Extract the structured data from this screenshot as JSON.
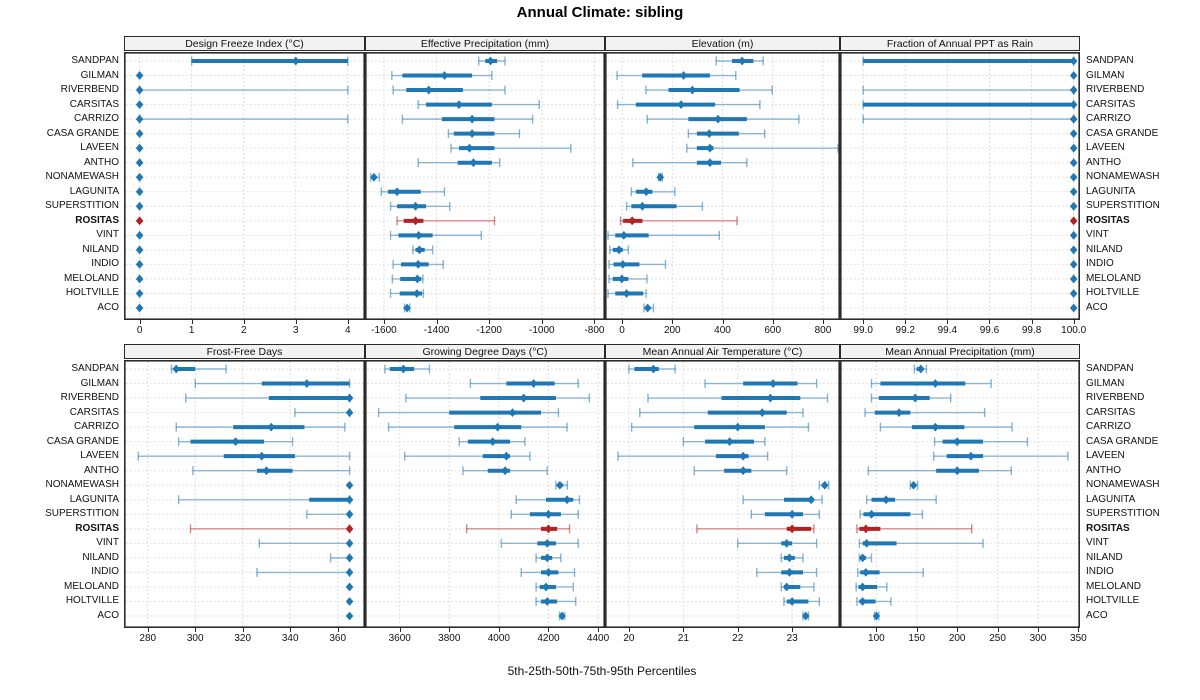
{
  "title": "Annual Climate: sibling",
  "caption": "5th-25th-50th-75th-95th Percentiles",
  "highlight_site": "ROSITAS",
  "colors": {
    "series": "#1f77b4",
    "highlight": "#b22222",
    "grid": "#d2d2d2",
    "panel_border": "#2b2b2b",
    "header_bg": "#f2f2f2",
    "text": "#111111"
  },
  "sites": [
    "SANDPAN",
    "GILMAN",
    "RIVERBEND",
    "CARSITAS",
    "CARRIZO",
    "CASA GRANDE",
    "LAVEEN",
    "ANTHO",
    "NONAMEWASH",
    "LAGUNITA",
    "SUPERSTITION",
    "ROSITAS",
    "VINT",
    "NILAND",
    "INDIO",
    "MELOLAND",
    "HOLTVILLE",
    "ACO"
  ],
  "chart_data": {
    "type": "dot-interval-trellis",
    "percentiles": [
      5,
      25,
      50,
      75,
      95
    ],
    "layout": {
      "rows": 2,
      "cols": 4
    },
    "panels": [
      {
        "title": "Design Freeze Index (°C)",
        "tick_values": [
          0,
          1,
          2,
          3,
          4
        ],
        "tick_labels": [
          "0",
          "1",
          "2",
          "3",
          "4"
        ],
        "domain": [
          -0.3,
          4.33
        ],
        "values": [
          [
            1,
            1,
            3,
            4,
            4
          ],
          [
            0,
            0,
            0,
            0,
            0
          ],
          [
            0,
            0,
            0,
            0,
            4
          ],
          [
            0,
            0,
            0,
            0,
            0
          ],
          [
            0,
            0,
            0,
            0,
            4
          ],
          [
            0,
            0,
            0,
            0,
            0
          ],
          [
            0,
            0,
            0,
            0,
            0
          ],
          [
            0,
            0,
            0,
            0,
            0
          ],
          [
            0,
            0,
            0,
            0,
            0
          ],
          [
            0,
            0,
            0,
            0,
            0
          ],
          [
            0,
            0,
            0,
            0,
            0
          ],
          [
            0,
            0,
            0,
            0,
            0
          ],
          [
            0,
            0,
            0,
            0,
            0
          ],
          [
            0,
            0,
            0,
            0,
            0
          ],
          [
            0,
            0,
            0,
            0,
            0
          ],
          [
            0,
            0,
            0,
            0,
            0
          ],
          [
            0,
            0,
            0,
            0,
            0
          ],
          [
            0,
            0,
            0,
            0,
            0
          ]
        ]
      },
      {
        "title": "Effective Precipitation (mm)",
        "tick_values": [
          -1600,
          -1400,
          -1200,
          -1000,
          -800
        ],
        "tick_labels": [
          "-1600",
          "-1400",
          "-1200",
          "-1000",
          "-800"
        ],
        "domain": [
          -1672,
          -760
        ],
        "values": [
          [
            -1240,
            -1215,
            -1195,
            -1170,
            -1140
          ],
          [
            -1570,
            -1530,
            -1370,
            -1265,
            -1190
          ],
          [
            -1565,
            -1515,
            -1430,
            -1300,
            -1140
          ],
          [
            -1470,
            -1440,
            -1315,
            -1190,
            -1010
          ],
          [
            -1530,
            -1380,
            -1265,
            -1180,
            -1035
          ],
          [
            -1355,
            -1335,
            -1265,
            -1180,
            -1085
          ],
          [
            -1345,
            -1315,
            -1275,
            -1180,
            -890
          ],
          [
            -1470,
            -1320,
            -1260,
            -1190,
            -1160
          ],
          [
            -1650,
            -1645,
            -1638,
            -1630,
            -1618
          ],
          [
            -1610,
            -1585,
            -1550,
            -1460,
            -1370
          ],
          [
            -1575,
            -1550,
            -1480,
            -1440,
            -1350
          ],
          [
            -1550,
            -1525,
            -1480,
            -1450,
            -1180
          ],
          [
            -1575,
            -1545,
            -1468,
            -1415,
            -1230
          ],
          [
            -1490,
            -1480,
            -1465,
            -1445,
            -1415
          ],
          [
            -1565,
            -1535,
            -1470,
            -1430,
            -1375
          ],
          [
            -1568,
            -1538,
            -1473,
            -1458,
            -1452
          ],
          [
            -1575,
            -1540,
            -1475,
            -1455,
            -1450
          ],
          [
            -1522,
            -1518,
            -1512,
            -1508,
            -1502
          ]
        ]
      },
      {
        "title": "Elevation (m)",
        "tick_values": [
          0,
          200,
          400,
          600,
          800
        ],
        "tick_labels": [
          "0",
          "200",
          "400",
          "600",
          "800"
        ],
        "domain": [
          -68,
          868
        ],
        "values": [
          [
            375,
            438,
            478,
            523,
            562
          ],
          [
            -20,
            80,
            245,
            350,
            453
          ],
          [
            95,
            185,
            280,
            468,
            598
          ],
          [
            -18,
            55,
            235,
            370,
            549
          ],
          [
            100,
            264,
            382,
            497,
            704
          ],
          [
            264,
            298,
            347,
            465,
            568
          ],
          [
            258,
            298,
            350,
            364,
            860
          ],
          [
            43,
            298,
            350,
            394,
            497
          ],
          [
            145,
            149,
            152,
            156,
            160
          ],
          [
            37,
            55,
            96,
            121,
            210
          ],
          [
            18,
            37,
            81,
            217,
            320
          ],
          [
            -6,
            4,
            40,
            81,
            458
          ],
          [
            -56,
            -27,
            7,
            106,
            387
          ],
          [
            -49,
            -37,
            -12,
            3,
            25
          ],
          [
            -52,
            -34,
            3,
            69,
            173
          ],
          [
            -52,
            -37,
            -1,
            25,
            99
          ],
          [
            -56,
            -27,
            18,
            84,
            96
          ],
          [
            87,
            94,
            102,
            112,
            125
          ]
        ]
      },
      {
        "title": "Fraction of Annual PPT as Rain",
        "tick_values": [
          99.0,
          99.2,
          99.4,
          99.6,
          99.8,
          100.0
        ],
        "tick_labels": [
          "99.0",
          "99.2",
          "99.4",
          "99.6",
          "99.8",
          "100.0"
        ],
        "domain": [
          98.89,
          100.03
        ],
        "values": [
          [
            99.0,
            99.0,
            100.0,
            100.0,
            100.0
          ],
          [
            100.0,
            100.0,
            100.0,
            100.0,
            100.0
          ],
          [
            99.0,
            100.0,
            100.0,
            100.0,
            100.0
          ],
          [
            99.0,
            99.0,
            100.0,
            100.0,
            100.0
          ],
          [
            99.0,
            100.0,
            100.0,
            100.0,
            100.0
          ],
          [
            100.0,
            100.0,
            100.0,
            100.0,
            100.0
          ],
          [
            100.0,
            100.0,
            100.0,
            100.0,
            100.0
          ],
          [
            100.0,
            100.0,
            100.0,
            100.0,
            100.0
          ],
          [
            100.0,
            100.0,
            100.0,
            100.0,
            100.0
          ],
          [
            100.0,
            100.0,
            100.0,
            100.0,
            100.0
          ],
          [
            100.0,
            100.0,
            100.0,
            100.0,
            100.0
          ],
          [
            100.0,
            100.0,
            100.0,
            100.0,
            100.0
          ],
          [
            100.0,
            100.0,
            100.0,
            100.0,
            100.0
          ],
          [
            100.0,
            100.0,
            100.0,
            100.0,
            100.0
          ],
          [
            100.0,
            100.0,
            100.0,
            100.0,
            100.0
          ],
          [
            100.0,
            100.0,
            100.0,
            100.0,
            100.0
          ],
          [
            100.0,
            100.0,
            100.0,
            100.0,
            100.0
          ],
          [
            100.0,
            100.0,
            100.0,
            100.0,
            100.0
          ]
        ]
      },
      {
        "title": "Frost-Free Days",
        "tick_values": [
          280,
          300,
          320,
          340,
          360
        ],
        "tick_labels": [
          "280",
          "300",
          "320",
          "340",
          "360"
        ],
        "domain": [
          270,
          371.5
        ],
        "values": [
          [
            290,
            291,
            292,
            300,
            313
          ],
          [
            300,
            328,
            347,
            365,
            365
          ],
          [
            296,
            331,
            365,
            365,
            365
          ],
          [
            342,
            365,
            365,
            365,
            365
          ],
          [
            292,
            316,
            332,
            346,
            363
          ],
          [
            293,
            298,
            317,
            329,
            341
          ],
          [
            276,
            312,
            328,
            342,
            365
          ],
          [
            299,
            326,
            330,
            341,
            365
          ],
          [
            365,
            365,
            365,
            365,
            365
          ],
          [
            293,
            348,
            365,
            365,
            365
          ],
          [
            347,
            365,
            365,
            365,
            365
          ],
          [
            298,
            365,
            365,
            365,
            365
          ],
          [
            327,
            365,
            365,
            365,
            365
          ],
          [
            357,
            365,
            365,
            365,
            365
          ],
          [
            326,
            365,
            365,
            365,
            365
          ],
          [
            365,
            365,
            365,
            365,
            365
          ],
          [
            365,
            365,
            365,
            365,
            365
          ],
          [
            365,
            365,
            365,
            365,
            365
          ]
        ]
      },
      {
        "title": "Growing Degree Days (°C)",
        "tick_values": [
          3600,
          3800,
          4000,
          4200,
          4400
        ],
        "tick_labels": [
          "3600",
          "3800",
          "4000",
          "4200",
          "4400"
        ],
        "domain": [
          3460,
          4428
        ],
        "values": [
          [
            3540,
            3560,
            3615,
            3658,
            3720
          ],
          [
            3885,
            4030,
            4140,
            4225,
            4320
          ],
          [
            3625,
            3925,
            4100,
            4230,
            4365
          ],
          [
            3515,
            3800,
            4055,
            4170,
            4240
          ],
          [
            3555,
            3820,
            3995,
            4090,
            4275
          ],
          [
            3840,
            3875,
            3975,
            4045,
            4105
          ],
          [
            3620,
            3935,
            4030,
            4045,
            4125
          ],
          [
            3855,
            3955,
            4025,
            4045,
            4195
          ],
          [
            4230,
            4236,
            4246,
            4258,
            4276
          ],
          [
            4070,
            4190,
            4275,
            4300,
            4325
          ],
          [
            4050,
            4125,
            4200,
            4250,
            4320
          ],
          [
            3870,
            4170,
            4200,
            4235,
            4285
          ],
          [
            4010,
            4155,
            4195,
            4230,
            4320
          ],
          [
            4150,
            4170,
            4195,
            4215,
            4250
          ],
          [
            4090,
            4170,
            4200,
            4240,
            4305
          ],
          [
            4150,
            4165,
            4190,
            4230,
            4300
          ],
          [
            4150,
            4170,
            4195,
            4235,
            4310
          ],
          [
            4245,
            4250,
            4255,
            4260,
            4265
          ]
        ]
      },
      {
        "title": "Mean Annual Air Temperature (°C)",
        "tick_values": [
          20,
          21,
          22,
          23
        ],
        "tick_labels": [
          "20",
          "21",
          "22",
          "23"
        ],
        "domain": [
          19.56,
          23.88
        ],
        "values": [
          [
            20.0,
            20.1,
            20.45,
            20.55,
            20.85
          ],
          [
            21.4,
            22.1,
            22.65,
            23.1,
            23.45
          ],
          [
            20.35,
            21.7,
            22.6,
            23.15,
            23.65
          ],
          [
            20.2,
            21.45,
            22.45,
            22.9,
            23.2
          ],
          [
            20.05,
            21.2,
            22.0,
            22.5,
            23.3
          ],
          [
            21.0,
            21.4,
            21.85,
            22.3,
            22.5
          ],
          [
            19.8,
            21.6,
            22.1,
            22.2,
            22.55
          ],
          [
            21.2,
            21.75,
            22.1,
            22.25,
            22.9
          ],
          [
            23.5,
            23.55,
            23.6,
            23.63,
            23.67
          ],
          [
            22.1,
            22.85,
            23.35,
            23.4,
            23.55
          ],
          [
            22.25,
            22.5,
            23.0,
            23.2,
            23.5
          ],
          [
            21.25,
            22.9,
            23.0,
            23.35,
            23.4
          ],
          [
            22.0,
            22.8,
            22.9,
            23.0,
            23.45
          ],
          [
            22.8,
            22.85,
            22.95,
            23.05,
            23.2
          ],
          [
            22.35,
            22.8,
            22.95,
            23.2,
            23.45
          ],
          [
            22.8,
            22.85,
            22.9,
            23.15,
            23.4
          ],
          [
            22.85,
            22.9,
            23.0,
            23.3,
            23.5
          ],
          [
            23.2,
            23.22,
            23.25,
            23.28,
            23.3
          ]
        ]
      },
      {
        "title": "Mean Annual Precipitation (mm)",
        "tick_values": [
          100,
          150,
          200,
          250,
          300,
          350
        ],
        "tick_labels": [
          "100",
          "150",
          "200",
          "250",
          "300",
          "350"
        ],
        "domain": [
          55,
          352
        ],
        "values": [
          [
            147,
            150,
            155,
            158,
            162
          ],
          [
            94,
            105,
            173,
            210,
            242
          ],
          [
            94,
            103,
            148,
            166,
            192
          ],
          [
            86,
            98,
            128,
            142,
            234
          ],
          [
            105,
            144,
            173,
            209,
            268
          ],
          [
            172,
            182,
            200,
            232,
            287
          ],
          [
            171,
            187,
            217,
            232,
            337
          ],
          [
            90,
            174,
            200,
            227,
            267
          ],
          [
            142,
            144,
            146,
            149,
            151
          ],
          [
            88,
            94,
            112,
            123,
            174
          ],
          [
            80,
            84,
            94,
            142,
            157
          ],
          [
            76,
            79,
            87,
            105,
            218
          ],
          [
            79,
            83,
            88,
            125,
            232
          ],
          [
            79,
            80,
            83,
            87,
            94
          ],
          [
            77,
            80,
            87,
            104,
            158
          ],
          [
            75,
            78,
            83,
            101,
            113
          ],
          [
            76,
            79,
            83,
            99,
            118
          ],
          [
            98,
            99,
            100,
            102,
            103
          ]
        ]
      }
    ]
  }
}
